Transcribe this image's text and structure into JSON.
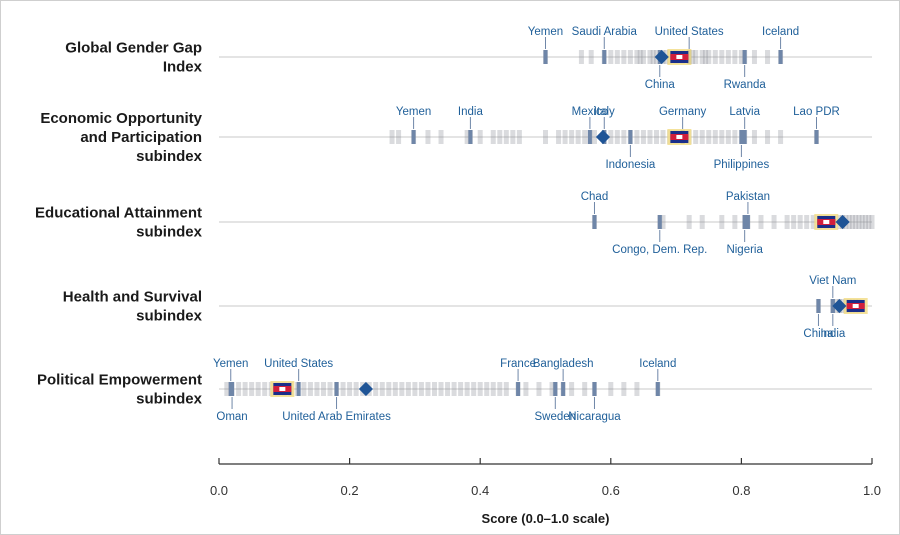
{
  "chart_data": {
    "type": "strip",
    "xlabel": "Score (0.0–1.0 scale)",
    "xlim": [
      0.0,
      1.0
    ],
    "xticks": [
      0.0,
      0.2,
      0.4,
      0.6,
      0.8,
      1.0
    ],
    "xtick_labels": [
      "0.0",
      "0.2",
      "0.4",
      "0.6",
      "0.8",
      "1.0"
    ],
    "colors": {
      "highlight": "#1f5f99",
      "mean_marker": "#1f5496",
      "label": "#1f5f99"
    },
    "rows": [
      {
        "label_lines": [
          "Global Gender Gap",
          "Index"
        ],
        "mean": 0.678,
        "highlight": 0.705,
        "labels_above": [
          {
            "name": "Yemen",
            "value": 0.5
          },
          {
            "name": "Saudi Arabia",
            "value": 0.59
          },
          {
            "name": "United States",
            "value": 0.72
          },
          {
            "name": "Iceland",
            "value": 0.86
          }
        ],
        "labels_below": [
          {
            "name": "China",
            "value": 0.675
          },
          {
            "name": "Rwanda",
            "value": 0.805
          }
        ],
        "distribution": [
          0.5,
          0.555,
          0.57,
          0.59,
          0.6,
          0.61,
          0.62,
          0.63,
          0.64,
          0.645,
          0.65,
          0.66,
          0.665,
          0.67,
          0.68,
          0.685,
          0.69,
          0.7,
          0.71,
          0.72,
          0.725,
          0.73,
          0.74,
          0.745,
          0.75,
          0.76,
          0.77,
          0.78,
          0.79,
          0.8,
          0.805,
          0.82,
          0.84,
          0.86
        ]
      },
      {
        "label_lines": [
          "Economic Opportunity",
          "and Participation",
          "subindex"
        ],
        "mean": 0.588,
        "highlight": 0.705,
        "labels_above": [
          {
            "name": "Yemen",
            "value": 0.298
          },
          {
            "name": "India",
            "value": 0.385
          },
          {
            "name": "Mexico",
            "value": 0.568
          },
          {
            "name": "Italy",
            "value": 0.59
          },
          {
            "name": "Germany",
            "value": 0.71
          },
          {
            "name": "Latvia",
            "value": 0.805
          },
          {
            "name": "Lao PDR",
            "value": 0.915
          }
        ],
        "labels_below": [
          {
            "name": "Indonesia",
            "value": 0.63
          },
          {
            "name": "Philippines",
            "value": 0.8
          }
        ],
        "distribution": [
          0.265,
          0.275,
          0.298,
          0.32,
          0.34,
          0.38,
          0.385,
          0.4,
          0.42,
          0.43,
          0.44,
          0.45,
          0.46,
          0.5,
          0.52,
          0.53,
          0.54,
          0.55,
          0.56,
          0.568,
          0.575,
          0.59,
          0.6,
          0.61,
          0.62,
          0.63,
          0.64,
          0.65,
          0.66,
          0.67,
          0.68,
          0.69,
          0.7,
          0.71,
          0.72,
          0.73,
          0.74,
          0.75,
          0.76,
          0.77,
          0.78,
          0.79,
          0.8,
          0.805,
          0.82,
          0.84,
          0.86,
          0.915
        ]
      },
      {
        "label_lines": [
          "Educational Attainment",
          "subindex"
        ],
        "mean": 0.955,
        "highlight": 0.93,
        "labels_above": [
          {
            "name": "Chad",
            "value": 0.575
          },
          {
            "name": "Pakistan",
            "value": 0.81
          }
        ],
        "labels_below": [
          {
            "name": "Congo, Dem. Rep.",
            "value": 0.675
          },
          {
            "name": "Nigeria",
            "value": 0.805
          }
        ],
        "distribution": [
          0.575,
          0.675,
          0.68,
          0.72,
          0.74,
          0.77,
          0.79,
          0.805,
          0.81,
          0.83,
          0.85,
          0.87,
          0.88,
          0.89,
          0.9,
          0.91,
          0.92,
          0.93,
          0.94,
          0.95,
          0.955,
          0.96,
          0.965,
          0.97,
          0.975,
          0.98,
          0.985,
          0.99,
          0.995,
          1.0
        ]
      },
      {
        "label_lines": [
          "Health and Survival",
          "subindex"
        ],
        "mean": 0.95,
        "highlight": 0.975,
        "labels_above": [
          {
            "name": "Viet Nam",
            "value": 0.94
          }
        ],
        "labels_below": [
          {
            "name": "China",
            "value": 0.918
          },
          {
            "name": "India",
            "value": 0.94
          }
        ],
        "distribution": [
          0.918,
          0.94,
          0.945,
          0.95,
          0.955,
          0.96,
          0.965,
          0.97,
          0.975,
          0.98
        ]
      },
      {
        "label_lines": [
          "Political Empowerment",
          "subindex"
        ],
        "mean": 0.225,
        "highlight": 0.097,
        "labels_above": [
          {
            "name": "Yemen",
            "value": 0.018
          },
          {
            "name": "United States",
            "value": 0.122
          },
          {
            "name": "France",
            "value": 0.458
          },
          {
            "name": "Bangladesh",
            "value": 0.527
          },
          {
            "name": "Iceland",
            "value": 0.672
          }
        ],
        "labels_below": [
          {
            "name": "Oman",
            "value": 0.02
          },
          {
            "name": "United Arab Emirates",
            "value": 0.18
          },
          {
            "name": "Sweden",
            "value": 0.515
          },
          {
            "name": "Nicaragua",
            "value": 0.575
          }
        ],
        "distribution": [
          0.012,
          0.018,
          0.02,
          0.03,
          0.04,
          0.05,
          0.06,
          0.07,
          0.08,
          0.09,
          0.1,
          0.11,
          0.12,
          0.13,
          0.14,
          0.15,
          0.16,
          0.17,
          0.18,
          0.19,
          0.2,
          0.21,
          0.22,
          0.23,
          0.24,
          0.25,
          0.26,
          0.27,
          0.28,
          0.29,
          0.3,
          0.31,
          0.32,
          0.33,
          0.34,
          0.35,
          0.36,
          0.37,
          0.38,
          0.39,
          0.4,
          0.41,
          0.42,
          0.43,
          0.44,
          0.458,
          0.47,
          0.49,
          0.51,
          0.515,
          0.527,
          0.54,
          0.56,
          0.575,
          0.6,
          0.62,
          0.64,
          0.672
        ]
      }
    ]
  }
}
